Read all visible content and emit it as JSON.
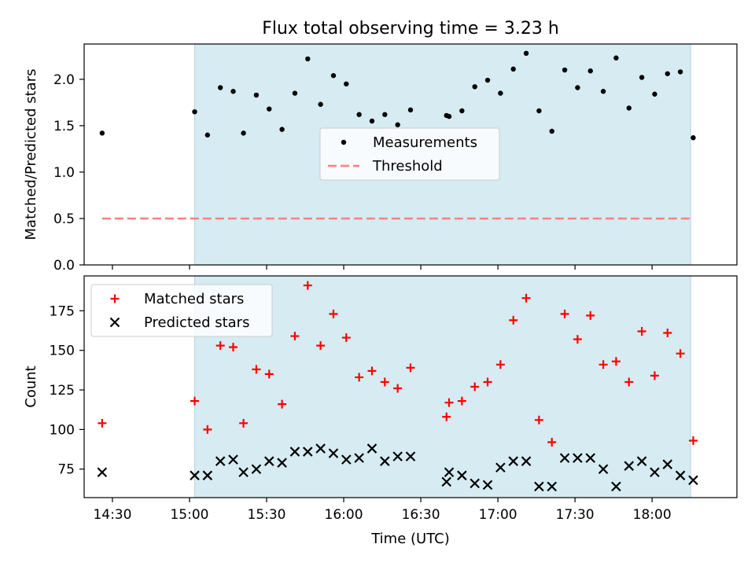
{
  "figure": {
    "title": "Flux total observing time = 3.23 h",
    "xlabel": "Time (UTC)",
    "x_tick_labels": [
      "14:30",
      "15:00",
      "15:30",
      "16:00",
      "16:30",
      "17:00",
      "17:30",
      "18:00"
    ],
    "x_tick_values": [
      "14:30",
      "15:00",
      "15:30",
      "16:00",
      "16:30",
      "17:00",
      "17:30",
      "18:00"
    ]
  },
  "chart_data": [
    {
      "type": "scatter",
      "panel": "top",
      "ylabel": "Matched/Predicted stars",
      "xlim": [
        "14:19",
        "18:33"
      ],
      "ylim": [
        0,
        2.38
      ],
      "y_ticks": [
        0.0,
        0.5,
        1.0,
        1.5,
        2.0
      ],
      "y_tick_labels": [
        "0.0",
        "0.5",
        "1.0",
        "1.5",
        "2.0"
      ],
      "shaded_span": [
        "15:02",
        "18:15"
      ],
      "shade_color": "#add8e6",
      "legend": "center",
      "series": [
        {
          "name": "Measurements",
          "marker": "dot",
          "color": "#000000",
          "points": [
            [
              "14:26",
              1.42
            ],
            [
              "15:02",
              1.65
            ],
            [
              "15:07",
              1.4
            ],
            [
              "15:12",
              1.91
            ],
            [
              "15:17",
              1.87
            ],
            [
              "15:21",
              1.42
            ],
            [
              "15:26",
              1.83
            ],
            [
              "15:31",
              1.68
            ],
            [
              "15:36",
              1.46
            ],
            [
              "15:41",
              1.85
            ],
            [
              "15:46",
              2.22
            ],
            [
              "15:51",
              1.73
            ],
            [
              "15:56",
              2.04
            ],
            [
              "16:01",
              1.95
            ],
            [
              "16:06",
              1.62
            ],
            [
              "16:11",
              1.55
            ],
            [
              "16:16",
              1.62
            ],
            [
              "16:21",
              1.51
            ],
            [
              "16:26",
              1.67
            ],
            [
              "16:40",
              1.61
            ],
            [
              "16:41",
              1.6
            ],
            [
              "16:46",
              1.66
            ],
            [
              "16:51",
              1.92
            ],
            [
              "16:56",
              1.99
            ],
            [
              "17:01",
              1.85
            ],
            [
              "17:06",
              2.11
            ],
            [
              "17:11",
              2.28
            ],
            [
              "17:16",
              1.66
            ],
            [
              "17:21",
              1.44
            ],
            [
              "17:26",
              2.1
            ],
            [
              "17:31",
              1.91
            ],
            [
              "17:36",
              2.09
            ],
            [
              "17:41",
              1.87
            ],
            [
              "17:46",
              2.23
            ],
            [
              "17:51",
              1.69
            ],
            [
              "17:56",
              2.02
            ],
            [
              "18:01",
              1.84
            ],
            [
              "18:06",
              2.06
            ],
            [
              "18:11",
              2.08
            ],
            [
              "18:16",
              1.37
            ]
          ]
        },
        {
          "name": "Threshold",
          "style": "dashed line",
          "color": "#ff7f7f",
          "points": [
            [
              "14:26",
              0.5
            ],
            [
              "18:16",
              0.5
            ]
          ]
        }
      ]
    },
    {
      "type": "scatter",
      "panel": "bottom",
      "ylabel": "Count",
      "xlim": [
        "14:19",
        "18:33"
      ],
      "ylim": [
        57,
        197
      ],
      "y_ticks": [
        75,
        100,
        125,
        150,
        175
      ],
      "y_tick_labels": [
        "75",
        "100",
        "125",
        "150",
        "175"
      ],
      "shaded_span": [
        "15:02",
        "18:15"
      ],
      "shade_color": "#add8e6",
      "legend": "upper left",
      "series": [
        {
          "name": "Matched stars",
          "marker": "plus",
          "color": "#ff0000",
          "points": [
            [
              "14:26",
              104
            ],
            [
              "15:02",
              118
            ],
            [
              "15:07",
              100
            ],
            [
              "15:12",
              153
            ],
            [
              "15:17",
              152
            ],
            [
              "15:21",
              104
            ],
            [
              "15:26",
              138
            ],
            [
              "15:31",
              135
            ],
            [
              "15:36",
              116
            ],
            [
              "15:41",
              159
            ],
            [
              "15:46",
              191
            ],
            [
              "15:51",
              153
            ],
            [
              "15:56",
              173
            ],
            [
              "16:01",
              158
            ],
            [
              "16:06",
              133
            ],
            [
              "16:11",
              137
            ],
            [
              "16:16",
              130
            ],
            [
              "16:21",
              126
            ],
            [
              "16:26",
              139
            ],
            [
              "16:40",
              108
            ],
            [
              "16:41",
              117
            ],
            [
              "16:46",
              118
            ],
            [
              "16:51",
              127
            ],
            [
              "16:56",
              130
            ],
            [
              "17:01",
              141
            ],
            [
              "17:06",
              169
            ],
            [
              "17:11",
              183
            ],
            [
              "17:16",
              106
            ],
            [
              "17:21",
              92
            ],
            [
              "17:26",
              173
            ],
            [
              "17:31",
              157
            ],
            [
              "17:36",
              172
            ],
            [
              "17:41",
              141
            ],
            [
              "17:46",
              143
            ],
            [
              "17:51",
              130
            ],
            [
              "17:56",
              162
            ],
            [
              "18:01",
              134
            ],
            [
              "18:06",
              161
            ],
            [
              "18:11",
              148
            ],
            [
              "18:16",
              93
            ]
          ]
        },
        {
          "name": "Predicted stars",
          "marker": "x",
          "color": "#000000",
          "points": [
            [
              "14:26",
              73
            ],
            [
              "15:02",
              71
            ],
            [
              "15:07",
              71
            ],
            [
              "15:12",
              80
            ],
            [
              "15:17",
              81
            ],
            [
              "15:21",
              73
            ],
            [
              "15:26",
              75
            ],
            [
              "15:31",
              80
            ],
            [
              "15:36",
              79
            ],
            [
              "15:41",
              86
            ],
            [
              "15:46",
              86
            ],
            [
              "15:51",
              88
            ],
            [
              "15:56",
              85
            ],
            [
              "16:01",
              81
            ],
            [
              "16:06",
              82
            ],
            [
              "16:11",
              88
            ],
            [
              "16:16",
              80
            ],
            [
              "16:21",
              83
            ],
            [
              "16:26",
              83
            ],
            [
              "16:40",
              67
            ],
            [
              "16:41",
              73
            ],
            [
              "16:46",
              71
            ],
            [
              "16:51",
              66
            ],
            [
              "16:56",
              65
            ],
            [
              "17:01",
              76
            ],
            [
              "17:06",
              80
            ],
            [
              "17:11",
              80
            ],
            [
              "17:16",
              64
            ],
            [
              "17:21",
              64
            ],
            [
              "17:26",
              82
            ],
            [
              "17:31",
              82
            ],
            [
              "17:36",
              82
            ],
            [
              "17:41",
              75
            ],
            [
              "17:46",
              64
            ],
            [
              "17:51",
              77
            ],
            [
              "17:56",
              80
            ],
            [
              "18:01",
              73
            ],
            [
              "18:06",
              78
            ],
            [
              "18:11",
              71
            ],
            [
              "18:16",
              68
            ]
          ]
        }
      ]
    }
  ]
}
